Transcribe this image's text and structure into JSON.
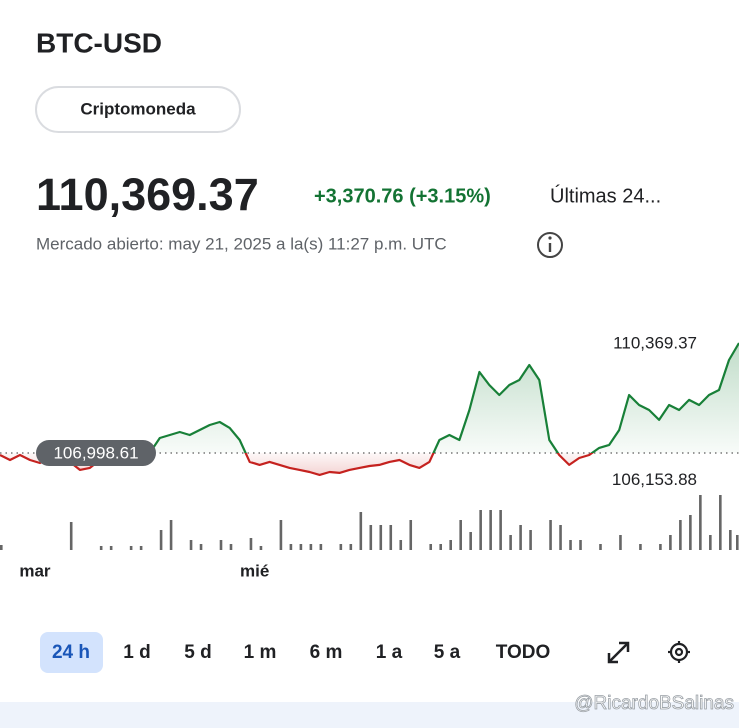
{
  "header": {
    "title": "BTC-USD",
    "chip": "Criptomoneda"
  },
  "quote": {
    "price": "110,369.37",
    "change": "+3,370.76 (+3.15%)",
    "period": "Últimas 24...",
    "market_status": "Mercado abierto: may 21, 2025 a la(s) 11:27 p.m. UTC"
  },
  "chart_data": {
    "type": "line",
    "categories": [
      null,
      null,
      null,
      "mar",
      null,
      null,
      null,
      null,
      null,
      null,
      null,
      null,
      null,
      null,
      null,
      null,
      null,
      null,
      null,
      null,
      null,
      null,
      null,
      null,
      null,
      "mié",
      null,
      null,
      null,
      null,
      null,
      null,
      null,
      null,
      null,
      null,
      null,
      null,
      null,
      null,
      null,
      null,
      null,
      null,
      null,
      null,
      null,
      null,
      null,
      null,
      null,
      null,
      null,
      null,
      null,
      null,
      null,
      null,
      null,
      null,
      null,
      null,
      null,
      null,
      null,
      null,
      null,
      null,
      null,
      null,
      null,
      null,
      null,
      null,
      null
    ],
    "values": [
      106937,
      106784,
      106937,
      106784,
      106692,
      106845,
      106784,
      106723,
      106478,
      106539,
      106784,
      106845,
      106937,
      106845,
      107029,
      106999,
      107458,
      107550,
      107642,
      107550,
      107703,
      107856,
      107948,
      107765,
      107397,
      106723,
      106631,
      106723,
      106631,
      106539,
      106478,
      106416,
      106325,
      106416,
      106386,
      106478,
      106539,
      106600,
      106631,
      106723,
      106784,
      106631,
      106539,
      106723,
      107397,
      107550,
      107397,
      108316,
      109480,
      109082,
      108776,
      109082,
      109235,
      109695,
      109235,
      107397,
      106937,
      106631,
      106845,
      106937,
      107152,
      107244,
      107703,
      108776,
      108469,
      108316,
      108010,
      108469,
      108316,
      108623,
      108469,
      108776,
      108929,
      109848,
      110369.37
    ],
    "value_labels": [
      null,
      null,
      null,
      null,
      null,
      null,
      null,
      null,
      null,
      null,
      null,
      null,
      null,
      null,
      null,
      null,
      null,
      null,
      null,
      null,
      null,
      null,
      null,
      null,
      null,
      null,
      null,
      null,
      null,
      null,
      null,
      null,
      null,
      null,
      null,
      null,
      null,
      null,
      null,
      null,
      null,
      null,
      null,
      null,
      null,
      null,
      null,
      null,
      null,
      null,
      null,
      null,
      null,
      null,
      null,
      null,
      null,
      null,
      null,
      null,
      null,
      null,
      null,
      null,
      null,
      null,
      null,
      null,
      null,
      null,
      null,
      null,
      null,
      null,
      "110,369.37"
    ],
    "baseline": {
      "value": 106998.61,
      "label": "106,998.61"
    },
    "low": {
      "value": 106153.88,
      "label": "106,153.88"
    },
    "ylim": [
      105900,
      110500
    ],
    "up_color": "#188038",
    "down_color": "#c5221f",
    "volume": {
      "values": [
        5,
        null,
        null,
        null,
        null,
        null,
        null,
        28,
        null,
        null,
        4,
        4,
        null,
        4,
        4,
        null,
        20,
        30,
        null,
        10,
        6,
        null,
        10,
        6,
        null,
        12,
        4,
        null,
        30,
        6,
        6,
        6,
        6,
        null,
        6,
        6,
        38,
        25,
        25,
        25,
        10,
        30,
        null,
        6,
        6,
        10,
        30,
        18,
        40,
        40,
        40,
        15,
        25,
        20,
        null,
        30,
        25,
        10,
        10,
        null,
        6,
        null,
        15,
        null,
        6,
        null,
        6,
        15,
        30,
        35,
        55,
        15,
        55,
        20,
        15
      ],
      "ylim": [
        0,
        60
      ],
      "color": "#666666"
    }
  },
  "range_tabs": [
    "24 h",
    "1 d",
    "5 d",
    "1 m",
    "6 m",
    "1 a",
    "5 a",
    "TODO"
  ],
  "watermark": "@RicardoBSalinas"
}
